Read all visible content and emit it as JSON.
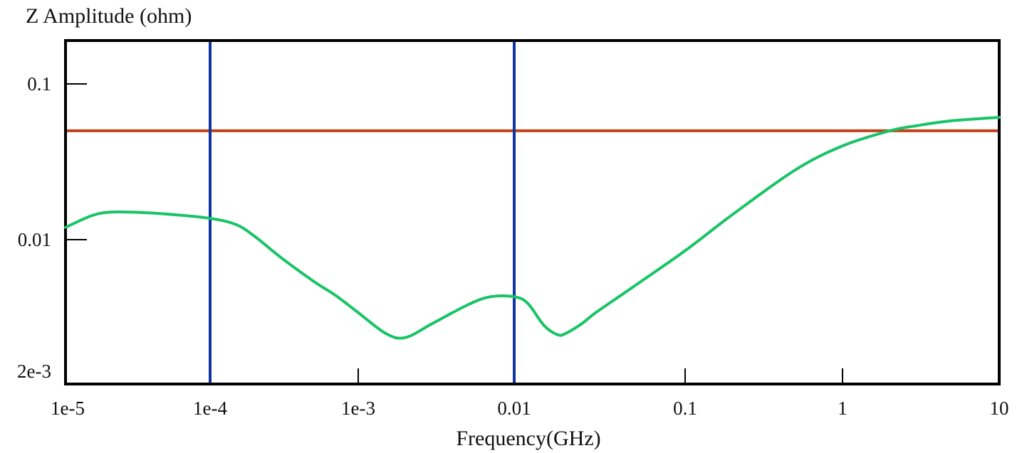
{
  "chart_data": {
    "type": "line",
    "title": "",
    "xlabel": "Frequency(GHz)",
    "ylabel": "Z Amplitude (ohm)",
    "xscale": "log",
    "yscale": "log",
    "xlim": [
      1e-05,
      10
    ],
    "ylim": [
      0.002,
      0.18
    ],
    "grid": false,
    "x_ticks": [
      {
        "value": 1e-05,
        "label": "1e-5",
        "mark": false
      },
      {
        "value": 0.0001,
        "label": "1e-4",
        "mark": false
      },
      {
        "value": 0.001,
        "label": "1e-3",
        "mark": true
      },
      {
        "value": 0.01,
        "label": "0.01",
        "mark": false
      },
      {
        "value": 0.1,
        "label": "0.1",
        "mark": true
      },
      {
        "value": 1,
        "label": "1",
        "mark": true
      },
      {
        "value": 10,
        "label": "10",
        "mark": false
      }
    ],
    "y_ticks": [
      {
        "value": 0.1,
        "label": "0.1",
        "mark": true
      },
      {
        "value": 0.01,
        "label": "0.01",
        "mark": true
      },
      {
        "value": 0.002,
        "label": "2e-3",
        "mark": false
      }
    ],
    "series": [
      {
        "color": "#19c466",
        "x": [
          1e-05,
          1.5e-05,
          2e-05,
          3e-05,
          5e-05,
          0.0001,
          0.00015,
          0.0002,
          0.0003,
          0.0005,
          0.0007,
          0.001,
          0.0015,
          0.002,
          0.003,
          0.005,
          0.007,
          0.01,
          0.012,
          0.015,
          0.018,
          0.02,
          0.025,
          0.03,
          0.05,
          0.1,
          0.2,
          0.5,
          1,
          2,
          3,
          5,
          10
        ],
        "y": [
          0.012,
          0.0142,
          0.015,
          0.015,
          0.0146,
          0.0137,
          0.0125,
          0.0105,
          0.0077,
          0.0054,
          0.0044,
          0.0034,
          0.0025,
          0.00235,
          0.0029,
          0.0038,
          0.0043,
          0.0043,
          0.0039,
          0.0028,
          0.00245,
          0.0025,
          0.0029,
          0.0034,
          0.005,
          0.0085,
          0.0145,
          0.028,
          0.04,
          0.05,
          0.054,
          0.058,
          0.061
        ]
      }
    ],
    "reference_lines": [
      {
        "orientation": "horizontal",
        "value": 0.05,
        "color": "#c0421a"
      },
      {
        "orientation": "vertical",
        "value": 0.0001,
        "color": "#1034a6"
      },
      {
        "orientation": "vertical",
        "value": 0.01,
        "color": "#1034a6"
      }
    ]
  }
}
